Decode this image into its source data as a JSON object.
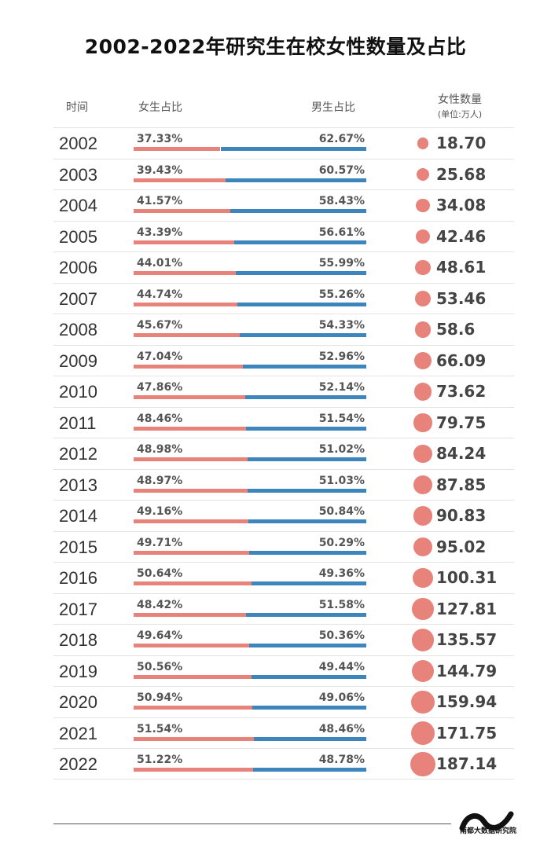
{
  "title": "2002-2022年研究生在校女性数量及占比",
  "headers": {
    "year": "时间",
    "female": "女生占比",
    "male": "男生占比",
    "count": "女性数量",
    "unit": "(单位:万人)"
  },
  "colors": {
    "female": "#e8837b",
    "male": "#3d86bd"
  },
  "chart_data": {
    "type": "table",
    "title": "2002-2022年研究生在校女性数量及占比",
    "columns": [
      "时间",
      "女生占比",
      "男生占比",
      "女性数量 (单位:万人)"
    ],
    "rows": [
      {
        "year": "2002",
        "female": "37.33%",
        "male": "62.67%",
        "count": "18.70"
      },
      {
        "year": "2003",
        "female": "39.43%",
        "male": "60.57%",
        "count": "25.68"
      },
      {
        "year": "2004",
        "female": "41.57%",
        "male": "58.43%",
        "count": "34.08"
      },
      {
        "year": "2005",
        "female": "43.39%",
        "male": "56.61%",
        "count": "42.46"
      },
      {
        "year": "2006",
        "female": "44.01%",
        "male": "55.99%",
        "count": "48.61"
      },
      {
        "year": "2007",
        "female": "44.74%",
        "male": "55.26%",
        "count": "53.46"
      },
      {
        "year": "2008",
        "female": "45.67%",
        "male": "54.33%",
        "count": "58.6"
      },
      {
        "year": "2009",
        "female": "47.04%",
        "male": "52.96%",
        "count": "66.09"
      },
      {
        "year": "2010",
        "female": "47.86%",
        "male": "52.14%",
        "count": "73.62"
      },
      {
        "year": "2011",
        "female": "48.46%",
        "male": "51.54%",
        "count": "79.75"
      },
      {
        "year": "2012",
        "female": "48.98%",
        "male": "51.02%",
        "count": "84.24"
      },
      {
        "year": "2013",
        "female": "48.97%",
        "male": "51.03%",
        "count": "87.85"
      },
      {
        "year": "2014",
        "female": "49.16%",
        "male": "50.84%",
        "count": "90.83"
      },
      {
        "year": "2015",
        "female": "49.71%",
        "male": "50.29%",
        "count": "95.02"
      },
      {
        "year": "2016",
        "female": "50.64%",
        "male": "49.36%",
        "count": "100.31"
      },
      {
        "year": "2017",
        "female": "48.42%",
        "male": "51.58%",
        "count": "127.81"
      },
      {
        "year": "2018",
        "female": "49.64%",
        "male": "50.36%",
        "count": "135.57"
      },
      {
        "year": "2019",
        "female": "50.56%",
        "male": "49.44%",
        "count": "144.79"
      },
      {
        "year": "2020",
        "female": "50.94%",
        "male": "49.06%",
        "count": "159.94"
      },
      {
        "year": "2021",
        "female": "51.54%",
        "male": "48.46%",
        "count": "171.75"
      },
      {
        "year": "2022",
        "female": "51.22%",
        "male": "48.78%",
        "count": "187.14"
      }
    ]
  },
  "logo_text": "南都大数据研究院"
}
